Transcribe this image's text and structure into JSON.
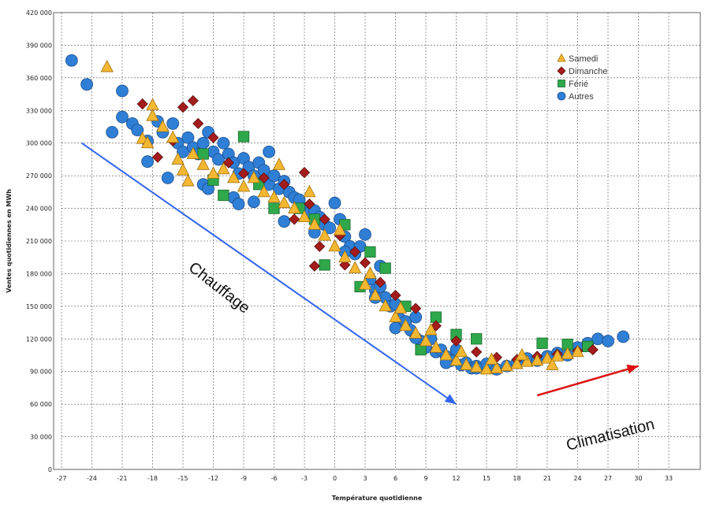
{
  "chart_data": {
    "type": "scatter",
    "title": "",
    "xlabel": "Température quotidienne",
    "ylabel": "Ventes quotidiennes en MWh",
    "xlim": [
      -27,
      33
    ],
    "ylim": [
      0,
      420000
    ],
    "x_ticks": [
      "-27",
      "-24",
      "-21",
      "-18",
      "-15",
      "-12",
      "-9",
      "-6",
      "-3",
      "0",
      "3",
      "6",
      "9",
      "12",
      "15",
      "18",
      "21",
      "24",
      "27",
      "30",
      "33"
    ],
    "y_ticks": [
      "0",
      "30 000",
      "60 000",
      "90 000",
      "120 000",
      "150 000",
      "180 000",
      "210 000",
      "240 000",
      "270 000",
      "300 000",
      "330 000",
      "360 000",
      "390 000",
      "420 000"
    ],
    "grid": true,
    "legend_position": "top-right",
    "colors": {
      "samedi": "#f5b731",
      "dimanche": "#a51c1c",
      "ferie": "#2ea84a",
      "autres": "#2f7fd6",
      "heating_arrow": "#3366ee",
      "cooling_arrow": "#dd1111"
    },
    "series": [
      {
        "name": "Samedi",
        "marker": "triangle",
        "points": [
          [
            -22.5,
            370000
          ],
          [
            -18,
            335000
          ],
          [
            -18,
            325000
          ],
          [
            -19,
            304000
          ],
          [
            -18.5,
            300000
          ],
          [
            -17,
            315000
          ],
          [
            -16,
            305000
          ],
          [
            -15.5,
            285000
          ],
          [
            -15,
            275000
          ],
          [
            -14,
            290000
          ],
          [
            -13,
            280000
          ],
          [
            -12,
            272000
          ],
          [
            -11,
            276000
          ],
          [
            -10,
            268000
          ],
          [
            -9,
            260000
          ],
          [
            -8,
            268000
          ],
          [
            -7,
            255000
          ],
          [
            -6,
            250000
          ],
          [
            -5,
            245000
          ],
          [
            -4,
            240000
          ],
          [
            -3,
            232000
          ],
          [
            -2,
            225000
          ],
          [
            -1,
            215000
          ],
          [
            0,
            205000
          ],
          [
            1,
            195000
          ],
          [
            2,
            185000
          ],
          [
            3,
            170000
          ],
          [
            4,
            160000
          ],
          [
            5,
            150000
          ],
          [
            6,
            140000
          ],
          [
            7,
            132000
          ],
          [
            8,
            125000
          ],
          [
            9,
            118000
          ],
          [
            10,
            112000
          ],
          [
            11,
            105000
          ],
          [
            12,
            100000
          ],
          [
            13,
            96000
          ],
          [
            14,
            94000
          ],
          [
            15,
            92000
          ],
          [
            16,
            93000
          ],
          [
            17,
            95000
          ],
          [
            18,
            97000
          ],
          [
            19,
            99000
          ],
          [
            20,
            100000
          ],
          [
            21,
            102000
          ],
          [
            22,
            104000
          ],
          [
            23,
            106000
          ],
          [
            24,
            108000
          ],
          [
            -5.5,
            280000
          ],
          [
            -2.5,
            255000
          ],
          [
            0.5,
            220000
          ],
          [
            3.5,
            180000
          ],
          [
            6.5,
            148000
          ],
          [
            9.5,
            128000
          ],
          [
            12.5,
            108000
          ],
          [
            15.5,
            101000
          ],
          [
            18.5,
            105000
          ],
          [
            21.5,
            96000
          ],
          [
            -14.5,
            265000
          ]
        ]
      },
      {
        "name": "Dimanche",
        "marker": "diamond",
        "points": [
          [
            -19,
            336000
          ],
          [
            -15,
            333000
          ],
          [
            -14,
            339000
          ],
          [
            -17.5,
            287000
          ],
          [
            -16,
            302000
          ],
          [
            -13.5,
            318000
          ],
          [
            -12,
            305000
          ],
          [
            -10.5,
            282000
          ],
          [
            -9,
            272000
          ],
          [
            -7,
            268000
          ],
          [
            -5,
            262000
          ],
          [
            -3,
            273000
          ],
          [
            -2.5,
            244000
          ],
          [
            -1,
            230000
          ],
          [
            0.5,
            215000
          ],
          [
            2,
            200000
          ],
          [
            3,
            190000
          ],
          [
            4.5,
            172000
          ],
          [
            6,
            160000
          ],
          [
            8,
            148000
          ],
          [
            10,
            132000
          ],
          [
            12,
            118000
          ],
          [
            14,
            108000
          ],
          [
            16,
            103000
          ],
          [
            18,
            101000
          ],
          [
            20,
            104000
          ],
          [
            22,
            106000
          ],
          [
            24,
            109000
          ],
          [
            25.5,
            110000
          ],
          [
            -4,
            230000
          ],
          [
            -1.5,
            205000
          ],
          [
            1,
            188000
          ],
          [
            -2,
            187000
          ]
        ]
      },
      {
        "name": "Férié",
        "marker": "square",
        "points": [
          [
            -9,
            306000
          ],
          [
            -13,
            290000
          ],
          [
            -12,
            266000
          ],
          [
            -11,
            252000
          ],
          [
            -7.5,
            262000
          ],
          [
            -6,
            240000
          ],
          [
            -3.5,
            240000
          ],
          [
            -2,
            230000
          ],
          [
            1,
            225000
          ],
          [
            3.5,
            200000
          ],
          [
            5,
            185000
          ],
          [
            -1,
            188000
          ],
          [
            7,
            150000
          ],
          [
            10,
            140000
          ],
          [
            12,
            124000
          ],
          [
            14,
            120000
          ],
          [
            20.5,
            116000
          ],
          [
            23,
            115000
          ],
          [
            25,
            113000
          ],
          [
            2.5,
            168000
          ],
          [
            8.5,
            110000
          ]
        ]
      },
      {
        "name": "Autres",
        "marker": "circle",
        "points": [
          [
            -26,
            376000
          ],
          [
            -24.5,
            354000
          ],
          [
            -21,
            348000
          ],
          [
            -21,
            324000
          ],
          [
            -20,
            318000
          ],
          [
            -19.5,
            312000
          ],
          [
            -18.5,
            283000
          ],
          [
            -18.5,
            302000
          ],
          [
            -17.5,
            320000
          ],
          [
            -17,
            310000
          ],
          [
            -16,
            318000
          ],
          [
            -15.5,
            300000
          ],
          [
            -15,
            292000
          ],
          [
            -14.5,
            305000
          ],
          [
            -14,
            296000
          ],
          [
            -13.5,
            290000
          ],
          [
            -13,
            300000
          ],
          [
            -12.5,
            310000
          ],
          [
            -12,
            292000
          ],
          [
            -11.5,
            285000
          ],
          [
            -11,
            300000
          ],
          [
            -10.5,
            290000
          ],
          [
            -10,
            282000
          ],
          [
            -9.5,
            272000
          ],
          [
            -9,
            286000
          ],
          [
            -8.5,
            278000
          ],
          [
            -8,
            270000
          ],
          [
            -7.5,
            282000
          ],
          [
            -7,
            275000
          ],
          [
            -6.5,
            262000
          ],
          [
            -6,
            270000
          ],
          [
            -5.5,
            258000
          ],
          [
            -5,
            265000
          ],
          [
            -4.5,
            255000
          ],
          [
            -4,
            250000
          ],
          [
            -3.5,
            248000
          ],
          [
            -3,
            240000
          ],
          [
            -2.5,
            236000
          ],
          [
            -2,
            238000
          ],
          [
            -1.5,
            232000
          ],
          [
            -1,
            225000
          ],
          [
            -0.5,
            222000
          ],
          [
            0,
            245000
          ],
          [
            0.5,
            230000
          ],
          [
            1,
            214000
          ],
          [
            1.5,
            205000
          ],
          [
            2,
            198000
          ],
          [
            2.5,
            205000
          ],
          [
            3,
            216000
          ],
          [
            3.5,
            175000
          ],
          [
            4,
            165000
          ],
          [
            4.5,
            168000
          ],
          [
            5,
            158000
          ],
          [
            5.5,
            150000
          ],
          [
            6,
            152000
          ],
          [
            6.5,
            138000
          ],
          [
            7,
            136000
          ],
          [
            7.5,
            128000
          ],
          [
            8,
            140000
          ],
          [
            8.5,
            118000
          ],
          [
            9,
            112000
          ],
          [
            9.5,
            120000
          ],
          [
            10,
            108000
          ],
          [
            10.5,
            110000
          ],
          [
            11,
            104000
          ],
          [
            11.5,
            100000
          ],
          [
            12,
            110000
          ],
          [
            12.5,
            96000
          ],
          [
            13,
            98000
          ],
          [
            13.5,
            93000
          ],
          [
            14,
            95000
          ],
          [
            15,
            97000
          ],
          [
            16,
            92000
          ],
          [
            17,
            95000
          ],
          [
            18,
            98000
          ],
          [
            19,
            102000
          ],
          [
            20,
            100000
          ],
          [
            21,
            104000
          ],
          [
            22,
            107000
          ],
          [
            23,
            105000
          ],
          [
            24,
            112000
          ],
          [
            25,
            116000
          ],
          [
            26,
            120000
          ],
          [
            27,
            118000
          ],
          [
            28.5,
            122000
          ],
          [
            -22,
            310000
          ],
          [
            -16.5,
            268000
          ],
          [
            -13,
            262000
          ],
          [
            -12.5,
            258000
          ],
          [
            -10,
            250000
          ],
          [
            -8,
            246000
          ],
          [
            -5,
            228000
          ],
          [
            -2,
            218000
          ],
          [
            1,
            200000
          ],
          [
            4,
            158000
          ],
          [
            6,
            130000
          ],
          [
            8,
            121000
          ],
          [
            11,
            98000
          ],
          [
            14,
            93000
          ],
          [
            4.5,
            187000
          ],
          [
            -6.5,
            292000
          ],
          [
            -9.5,
            244000
          ]
        ]
      }
    ],
    "annotations": [
      {
        "label": "Chauffage",
        "arrow_from": [
          -25,
          300000
        ],
        "arrow_to": [
          12,
          60000
        ]
      },
      {
        "label": "Climatisation",
        "arrow_from": [
          20,
          68000
        ],
        "arrow_to": [
          30,
          95000
        ]
      }
    ]
  }
}
